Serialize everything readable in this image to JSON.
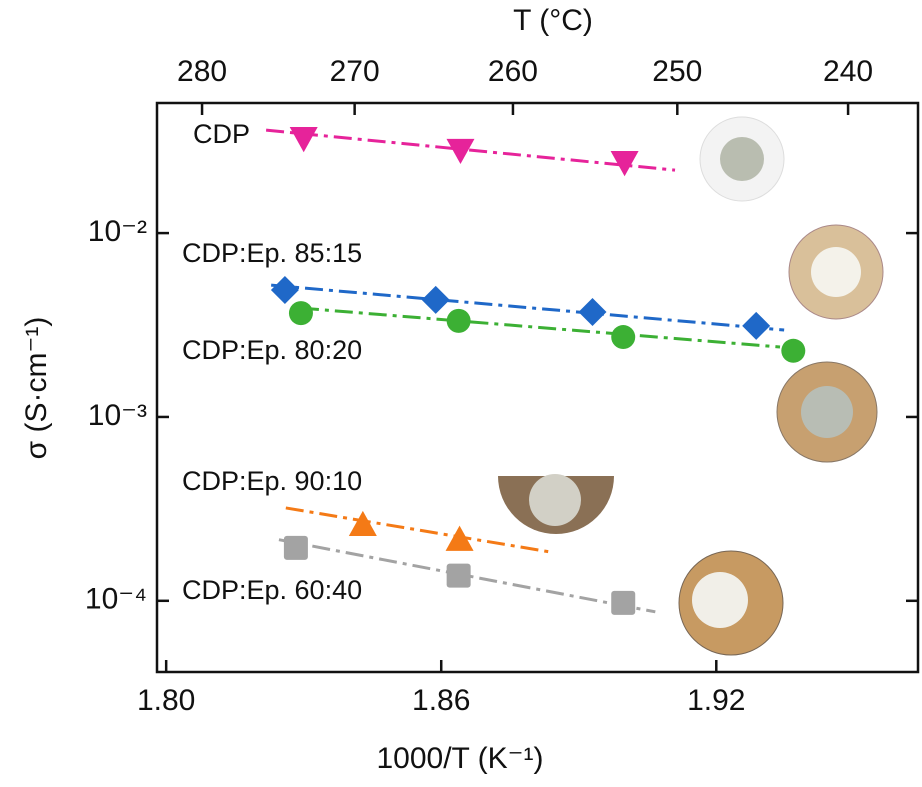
{
  "chart_data": {
    "type": "scatter",
    "xlabel": "1000/T (K⁻¹)",
    "ylabel": "σ (S·cm⁻¹)",
    "x2label": "T (°C)",
    "xlim": [
      1.798,
      1.964
    ],
    "xticks": [
      {
        "value": 1.8,
        "label": "1.80"
      },
      1.86,
      1.92
    ],
    "x2ticks": [
      280,
      270,
      260,
      250,
      240
    ],
    "ylim": [
      4.1e-05,
      0.051
    ],
    "yscale": "log",
    "yticks": [
      {
        "value": 0.01,
        "label": "10⁻²"
      },
      {
        "value": 0.001,
        "label": "10⁻³"
      },
      {
        "value": 0.0001,
        "label": "10⁻⁴"
      }
    ],
    "series": [
      {
        "name": "CDP",
        "color": "#e6239a",
        "marker": "triangle-down",
        "x": [
          1.83,
          1.8642,
          1.9
        ],
        "values": [
          0.0328,
          0.0283,
          0.0243
        ],
        "fit_x": [
          1.8218,
          1.911
        ],
        "fit_values": [
          0.0363,
          0.022
        ]
      },
      {
        "name": "CDP:Ep. 85:15",
        "color": "#1f68c8",
        "marker": "diamond",
        "x": [
          1.8259,
          1.8588,
          1.893,
          1.9287
        ],
        "values": [
          0.0049,
          0.00433,
          0.00372,
          0.00313
        ],
        "fit_x": [
          1.8229,
          1.9348
        ],
        "fit_values": [
          0.00521,
          0.00297
        ]
      },
      {
        "name": "CDP:Ep. 80:20",
        "color": "#3cb034",
        "marker": "circle",
        "x": [
          1.8294,
          1.8638,
          1.8997,
          1.9368
        ],
        "values": [
          0.00367,
          0.00333,
          0.00272,
          0.00229
        ],
        "fit_x": [
          1.8294,
          1.9339
        ],
        "fit_values": [
          0.00391,
          0.0024
        ]
      },
      {
        "name": "CDP:Ep. 90:10",
        "color": "#f47a16",
        "marker": "triangle-up",
        "x": [
          1.8429,
          1.864
        ],
        "values": [
          0.000259,
          0.000215
        ],
        "fit_x": [
          1.8261,
          1.8834
        ],
        "fit_values": [
          0.00032,
          0.000185
        ]
      },
      {
        "name": "CDP:Ep. 60:40",
        "color": "#a3a3a3",
        "marker": "square",
        "x": [
          1.8283,
          1.8638,
          1.8997
        ],
        "values": [
          0.000194,
          0.000137,
          9.75e-05
        ],
        "fit_x": [
          1.8246,
          1.9067
        ],
        "fit_values": [
          0.000215,
          8.71e-05
        ]
      }
    ]
  }
}
